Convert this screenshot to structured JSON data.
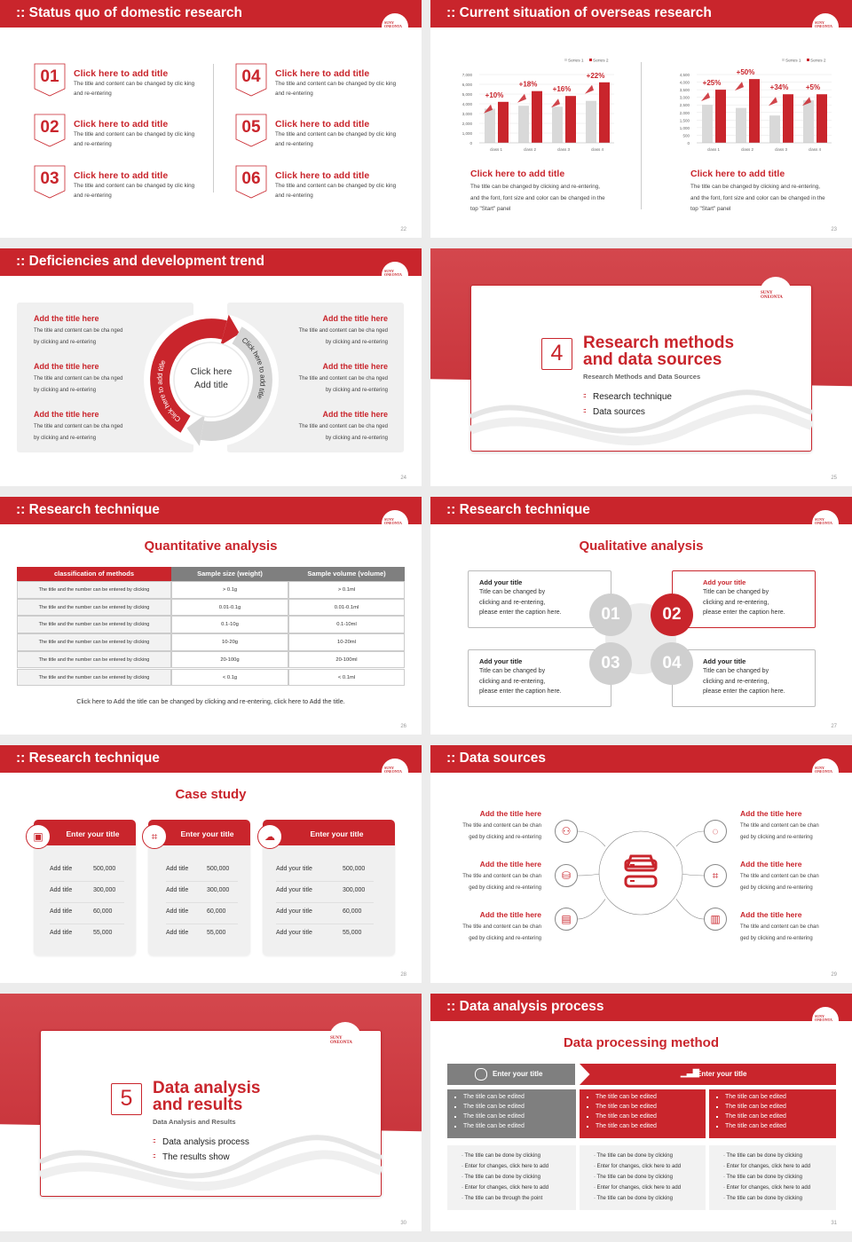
{
  "logo": "SUNY ONEONTA",
  "colors": {
    "brand_red": "#c9252c",
    "gray": "#d9d9d9",
    "panel": "#f0f0f0",
    "dark_gray": "#7f7f7f"
  },
  "s22": {
    "title": ":: Status quo of domestic research",
    "page": "22",
    "items": [
      {
        "num": "01",
        "title": "Click here to add title",
        "desc": "The title and content can be changed by clic king and re-entering"
      },
      {
        "num": "02",
        "title": "Click here to add title",
        "desc": "The title and content can be changed by clic king and re-entering"
      },
      {
        "num": "03",
        "title": "Click here to add title",
        "desc": "The title and content can be changed by clic king and re-entering"
      },
      {
        "num": "04",
        "title": "Click here to add title",
        "desc": "The title and content can be changed by clic king and re-entering"
      },
      {
        "num": "05",
        "title": "Click here to add title",
        "desc": "The title and content can be changed by clic king and re-entering"
      },
      {
        "num": "06",
        "title": "Click here to add title",
        "desc": "The title and content can be changed by clic king and re-entering"
      }
    ]
  },
  "s23": {
    "title": ":: Current situation of overseas research",
    "page": "23",
    "blocks": [
      {
        "title": "Click here to add title",
        "desc": "The title can be changed by clicking and re-entering, and the font, font size and color can be changed in the top \"Start\" panel"
      },
      {
        "title": "Click here to add title",
        "desc": "The title can be changed by clicking and re-entering, and the font, font size and color can be changed in the top \"Start\" panel"
      }
    ]
  },
  "chart_data": [
    {
      "type": "bar",
      "categories": [
        "class 1",
        "class 2",
        "class 3",
        "class 4"
      ],
      "series": [
        {
          "name": "Series 1",
          "values": [
            3500,
            3800,
            3700,
            4300
          ],
          "color": "#d9d9d9"
        },
        {
          "name": "Series 2",
          "values": [
            4200,
            5300,
            4800,
            6200
          ],
          "color": "#c9252c"
        }
      ],
      "annotations": [
        "+10%",
        "+18%",
        "+16%",
        "+22%"
      ],
      "yticks": [
        "0",
        "1,000",
        "2,000",
        "3,000",
        "4,000",
        "5,000",
        "6,000",
        "7,000"
      ],
      "ylim": [
        0,
        7000
      ],
      "grid": true,
      "legend": "top-right"
    },
    {
      "type": "bar",
      "categories": [
        "class 1",
        "class 2",
        "class 3",
        "class 4"
      ],
      "series": [
        {
          "name": "Series 1",
          "values": [
            2500,
            2300,
            1800,
            2800
          ],
          "color": "#d9d9d9"
        },
        {
          "name": "Series 2",
          "values": [
            3500,
            4200,
            3200,
            3200
          ],
          "color": "#c9252c"
        }
      ],
      "annotations": [
        "+25%",
        "+50%",
        "+34%",
        "+5%"
      ],
      "yticks": [
        "0",
        "500",
        "1,000",
        "1,500",
        "2,000",
        "2,500",
        "3,000",
        "3,500",
        "4,000",
        "4,500"
      ],
      "ylim": [
        0,
        4500
      ],
      "grid": true,
      "legend": "top-right"
    }
  ],
  "s24": {
    "title": ":: Deficiencies and development trend",
    "page": "24",
    "center": [
      "Click here",
      "Add title"
    ],
    "red_arc": "Click here to add title",
    "gray_arc": "Click here to add title",
    "items": [
      {
        "title": "Add the title here",
        "desc": "The title and content can be cha nged by clicking and re-entering"
      },
      {
        "title": "Add the title here",
        "desc": "The title and content can be cha nged by clicking and re-entering"
      },
      {
        "title": "Add the title here",
        "desc": "The title and content can be cha nged by clicking and re-entering"
      },
      {
        "title": "Add the title here",
        "desc": "The title and content can be cha nged by clicking and re-entering"
      },
      {
        "title": "Add the title here",
        "desc": "The title and content can be cha nged by clicking and re-entering"
      },
      {
        "title": "Add the title here",
        "desc": "The title and content can be cha nged by clicking and re-entering"
      }
    ]
  },
  "s25": {
    "num": "4",
    "title": [
      "Research methods",
      "and data sources"
    ],
    "subtitle": "Research Methods and Data Sources",
    "bullets": [
      "Research technique",
      "Data sources"
    ],
    "page": "25"
  },
  "s26": {
    "title": ":: Research technique",
    "page": "26",
    "heading": "Quantitative analysis",
    "columns": [
      "classification of methods",
      "Sample size (weight)",
      "Sample volume (volume)"
    ],
    "rows": [
      [
        "The title and the number can be entered by clicking",
        "> 0.1g",
        "> 0.1ml"
      ],
      [
        "The title and the number can be entered by clicking",
        "0.01-0.1g",
        "0.01-0.1ml"
      ],
      [
        "The title and the number can be entered by clicking",
        "0.1-10g",
        "0.1-10ml"
      ],
      [
        "The title and the number can be entered by clicking",
        "10-20g",
        "10-20ml"
      ],
      [
        "The title and the number can be entered by clicking",
        "20-100g",
        "20-100ml"
      ],
      [
        "The title and the number can be entered by clicking",
        "< 0.1g",
        "< 0.1ml"
      ]
    ],
    "footer": "Click here to Add the title can be changed by clicking and re-entering, click here to Add the title."
  },
  "s27": {
    "title": ":: Research technique",
    "page": "27",
    "heading": "Qualitative analysis",
    "items": [
      {
        "num": "01",
        "title": "Add your title",
        "lines": [
          "Title can be changed by",
          "clicking and re-entering,",
          "please enter the caption here."
        ]
      },
      {
        "num": "02",
        "title": "Add your title",
        "lines": [
          "Title can be changed by",
          "clicking and re-entering,",
          "please enter the caption here."
        ]
      },
      {
        "num": "03",
        "title": "Add your title",
        "lines": [
          "Title can be changed by",
          "clicking and re-entering,",
          "please enter the caption here."
        ]
      },
      {
        "num": "04",
        "title": "Add your title",
        "lines": [
          "Title can be changed by",
          "clicking and re-entering,",
          "please enter the caption here."
        ]
      }
    ]
  },
  "s28": {
    "title": ":: Research technique",
    "page": "28",
    "heading": "Case study",
    "cards": [
      {
        "title": "Enter your title",
        "icon": "phone-user-icon",
        "rows": [
          [
            "Add title",
            "500,000"
          ],
          [
            "Add title",
            "300,000"
          ],
          [
            "Add title",
            "60,000"
          ],
          [
            "Add title",
            "55,000"
          ]
        ]
      },
      {
        "title": "Enter your title",
        "icon": "qr-scan-icon",
        "rows": [
          [
            "Add title",
            "500,000"
          ],
          [
            "Add title",
            "300,000"
          ],
          [
            "Add title",
            "60,000"
          ],
          [
            "Add title",
            "55,000"
          ]
        ]
      },
      {
        "title": "Enter your title",
        "icon": "chat-icon",
        "rows": [
          [
            "Add your title",
            "500,000"
          ],
          [
            "Add your title",
            "300,000"
          ],
          [
            "Add your title",
            "60,000"
          ],
          [
            "Add your title",
            "55,000"
          ]
        ]
      }
    ]
  },
  "s29": {
    "title": ":: Data sources",
    "page": "29",
    "center_icon": "server-icon",
    "items": [
      {
        "title": "Add the title here",
        "desc": [
          "The title and content can be chan",
          "ged by clicking and re-entering"
        ],
        "icon": "people-icon"
      },
      {
        "title": "Add the title here",
        "desc": [
          "The title and content can be chan",
          "ged by clicking and re-entering"
        ],
        "icon": "database-icon"
      },
      {
        "title": "Add the title here",
        "desc": [
          "The title and content can be chan",
          "ged by clicking and re-entering"
        ],
        "icon": "document-user-icon"
      },
      {
        "title": "Add the title here",
        "desc": [
          "The title and content can be chan",
          "ged by clicking and re-entering"
        ],
        "icon": "chat-icon"
      },
      {
        "title": "Add the title here",
        "desc": [
          "The title and content can be chan",
          "ged by clicking and re-entering"
        ],
        "icon": "qr-scan-icon"
      },
      {
        "title": "Add the title here",
        "desc": [
          "The title and content can be chan",
          "ged by clicking and re-entering"
        ],
        "icon": "building-icon"
      }
    ]
  },
  "s30": {
    "num": "5",
    "title": [
      "Data analysis",
      "and results"
    ],
    "subtitle": "Data Analysis and Results",
    "bullets": [
      "Data analysis process",
      "The results show"
    ],
    "page": "30"
  },
  "s31": {
    "title": ":: Data analysis process",
    "page": "31",
    "heading": "Data processing method",
    "head_gray": "Enter your title",
    "head_red": "Enter your title",
    "mid": [
      [
        "The title can be edited",
        "The title can be edited",
        "The title can be edited",
        "The title can be edited"
      ],
      [
        "The title can be edited",
        "The title can be edited",
        "The title can be edited",
        "The title can be edited"
      ],
      [
        "The title can be edited",
        "The title can be edited",
        "The title can be edited",
        "The title can be edited"
      ]
    ],
    "bottom": [
      [
        "The title can be done by clicking",
        "Enter for changes, click here to add",
        "The title can be done by clicking",
        "Enter for changes, click here to add",
        "The title can be through the point"
      ],
      [
        "The title can be done by clicking",
        "Enter for changes, click here to add",
        "The title can be done by clicking",
        "Enter for changes, click here to add",
        "The title can be done by clicking"
      ],
      [
        "The title can be done by clicking",
        "Enter for changes, click here to add",
        "The title can be done by clicking",
        "Enter for changes, click here to add",
        "The title can be done by clicking"
      ]
    ]
  }
}
